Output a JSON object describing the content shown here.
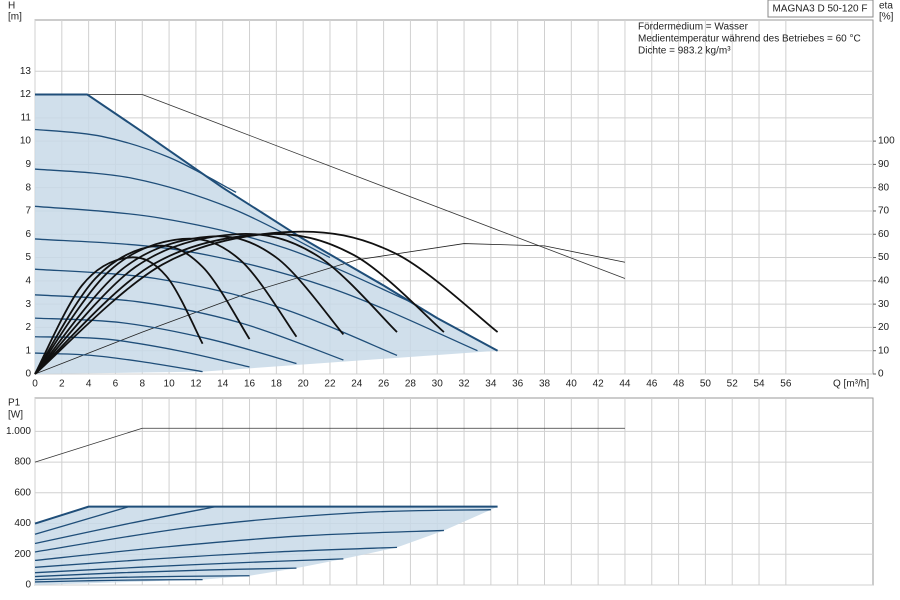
{
  "chart_data": [
    {
      "type": "line",
      "title": "MAGNA3 D 50-120 F",
      "annotations": [
        "Fördermedium = Wasser",
        "Medientemperatur während des Betriebes = 60 °C",
        "Dichte = 983.2 kg/m³"
      ],
      "xlabel": "Q [m³/h]",
      "ylabel": "H",
      "yunit": "[m]",
      "y2label": "eta",
      "y2unit": "[%]",
      "xlim": [
        0,
        62.5
      ],
      "ylim": [
        0,
        15.2
      ],
      "y2lim": [
        0,
        152
      ],
      "xticks": [
        0,
        2,
        4,
        6,
        8,
        10,
        12,
        14,
        16,
        18,
        20,
        22,
        24,
        26,
        28,
        30,
        32,
        34,
        36,
        38,
        40,
        42,
        44,
        46,
        48,
        50,
        52,
        54,
        56
      ],
      "yticks": [
        0,
        1,
        2,
        3,
        4,
        5,
        6,
        7,
        8,
        9,
        10,
        11,
        12,
        13
      ],
      "y2ticks": [
        0,
        10,
        20,
        30,
        40,
        50,
        60,
        70,
        80,
        90,
        100
      ],
      "grid": true,
      "show_xtick_labels": true,
      "series": [
        {
          "style": "area",
          "color": "#c8d9e8",
          "x": [
            0,
            3.9,
            8,
            14,
            20,
            26,
            30,
            34.5,
            12.5,
            0
          ],
          "values": [
            12,
            12,
            10.4,
            8,
            5.8,
            3.8,
            2.4,
            1,
            0.1,
            0
          ]
        },
        {
          "style": "thin",
          "color": "#333333",
          "x": [
            0,
            8,
            44
          ],
          "values": [
            12,
            12,
            4.1
          ]
        },
        {
          "style": "thin",
          "color": "#222222",
          "axis": "y2",
          "x": [
            0,
            8,
            16,
            24,
            32,
            38,
            44
          ],
          "values": [
            0,
            18,
            35,
            49,
            56,
            55,
            48
          ]
        },
        {
          "style": "curve",
          "color": "#1f4e79",
          "x": [
            0,
            5,
            10,
            15
          ],
          "values": [
            10.5,
            10.2,
            9.3,
            7.8
          ]
        },
        {
          "style": "curve",
          "color": "#1f4e79",
          "x": [
            0,
            7.3,
            14.7,
            22
          ],
          "values": [
            8.8,
            8.4,
            7.1,
            5.0
          ]
        },
        {
          "style": "curve",
          "color": "#1f4e79",
          "x": [
            0,
            9.3,
            18.7,
            28
          ],
          "values": [
            7.2,
            6.7,
            5.4,
            3.1
          ]
        },
        {
          "style": "curve",
          "color": "#1f4e79",
          "x": [
            0,
            11,
            22,
            33
          ],
          "values": [
            5.8,
            5.3,
            3.7,
            1.0
          ]
        },
        {
          "style": "curve",
          "color": "#1f4e79",
          "x": [
            0,
            9,
            18,
            27
          ],
          "values": [
            4.5,
            4.1,
            2.9,
            0.8
          ]
        },
        {
          "style": "curve",
          "color": "#1f4e79",
          "x": [
            0,
            7.7,
            15.3,
            23
          ],
          "values": [
            3.4,
            3.1,
            2.2,
            0.6
          ]
        },
        {
          "style": "curve",
          "color": "#1f4e79",
          "x": [
            0,
            6.5,
            13,
            19.5
          ],
          "values": [
            2.4,
            2.2,
            1.5,
            0.45
          ]
        },
        {
          "style": "curve",
          "color": "#1f4e79",
          "x": [
            0,
            5.3,
            10.7,
            16
          ],
          "values": [
            1.6,
            1.5,
            1.0,
            0.3
          ]
        },
        {
          "style": "curve",
          "color": "#1f4e79",
          "x": [
            0,
            4.2,
            8.3,
            12.5
          ],
          "values": [
            0.9,
            0.8,
            0.5,
            0.1
          ]
        },
        {
          "style": "edge",
          "color": "#1f4e79",
          "x": [
            0,
            3.9,
            8,
            14,
            20,
            26,
            30,
            34.5
          ],
          "values": [
            12,
            12,
            10.4,
            8,
            5.8,
            3.8,
            2.4,
            1
          ]
        },
        {
          "style": "thick",
          "color": "#111111",
          "axis": "y2",
          "x": [
            0,
            3.5,
            7,
            9.8,
            12.5
          ],
          "values": [
            0,
            38,
            50,
            42,
            13
          ]
        },
        {
          "style": "thick",
          "color": "#111111",
          "axis": "y2",
          "x": [
            0,
            4.5,
            9,
            12.5,
            16
          ],
          "values": [
            0,
            41,
            55,
            46,
            15
          ]
        },
        {
          "style": "thick",
          "color": "#111111",
          "axis": "y2",
          "x": [
            0,
            5.5,
            11,
            15.3,
            19.5
          ],
          "values": [
            0,
            44,
            58,
            49,
            16
          ]
        },
        {
          "style": "thick",
          "color": "#111111",
          "axis": "y2",
          "x": [
            0,
            6.5,
            13,
            18,
            23
          ],
          "values": [
            0,
            45,
            59,
            50,
            17
          ]
        },
        {
          "style": "thick",
          "color": "#111111",
          "axis": "y2",
          "x": [
            0,
            7.5,
            15,
            21,
            27
          ],
          "values": [
            0,
            46,
            60,
            51,
            18
          ]
        },
        {
          "style": "thick",
          "color": "#111111",
          "axis": "y2",
          "x": [
            0,
            8.5,
            17,
            23.8,
            30.5
          ],
          "values": [
            0,
            46,
            60,
            51,
            18
          ]
        },
        {
          "style": "thick",
          "color": "#111111",
          "axis": "y2",
          "x": [
            0,
            9.5,
            19,
            26.8,
            34.5
          ],
          "values": [
            0,
            47,
            61,
            52,
            18
          ]
        }
      ]
    },
    {
      "type": "line",
      "ylabel": "P1",
      "yunit": "[W]",
      "xlim": [
        0,
        62.5
      ],
      "ylim": [
        0,
        1217
      ],
      "xticks": [
        0,
        2,
        4,
        6,
        8,
        10,
        12,
        14,
        16,
        18,
        20,
        22,
        24,
        26,
        28,
        30,
        32,
        34,
        36,
        38,
        40,
        42,
        44,
        46,
        48,
        50,
        52,
        54,
        56
      ],
      "yticks": [
        0,
        200,
        400,
        600,
        800,
        {
          "value": 1000,
          "label": "1.000"
        }
      ],
      "grid": true,
      "show_xtick_labels": false,
      "series": [
        {
          "style": "area",
          "color": "#c8d9e8",
          "x": [
            0,
            4,
            34.5,
            34,
            30.5,
            27,
            23,
            19.5,
            16,
            12.5,
            0
          ],
          "values": [
            400,
            510,
            510,
            490,
            355,
            245,
            170,
            110,
            60,
            35,
            0
          ]
        },
        {
          "style": "thin",
          "color": "#333333",
          "x": [
            0,
            8,
            44
          ],
          "values": [
            800,
            1020,
            1020
          ]
        },
        {
          "style": "curve",
          "color": "#1f4e79",
          "x": [
            0,
            3.5,
            7
          ],
          "values": [
            330,
            420,
            510
          ]
        },
        {
          "style": "curve",
          "color": "#1f4e79",
          "x": [
            0,
            7,
            13.5
          ],
          "values": [
            270,
            400,
            510
          ]
        },
        {
          "style": "curve",
          "color": "#1f4e79",
          "x": [
            0,
            12,
            24,
            34
          ],
          "values": [
            215,
            380,
            470,
            490
          ]
        },
        {
          "style": "curve",
          "color": "#1f4e79",
          "x": [
            0,
            10,
            20,
            30.5
          ],
          "values": [
            160,
            250,
            320,
            355
          ]
        },
        {
          "style": "curve",
          "color": "#1f4e79",
          "x": [
            0,
            9,
            18,
            27
          ],
          "values": [
            115,
            170,
            215,
            245
          ]
        },
        {
          "style": "curve",
          "color": "#1f4e79",
          "x": [
            0,
            7.7,
            15.3,
            23
          ],
          "values": [
            80,
            115,
            145,
            170
          ]
        },
        {
          "style": "curve",
          "color": "#1f4e79",
          "x": [
            0,
            6.5,
            13,
            19.5
          ],
          "values": [
            55,
            80,
            98,
            110
          ]
        },
        {
          "style": "curve",
          "color": "#1f4e79",
          "x": [
            0,
            5.3,
            10.7,
            16
          ],
          "values": [
            35,
            48,
            56,
            60
          ]
        },
        {
          "style": "curve",
          "color": "#1f4e79",
          "x": [
            0,
            4.2,
            8.3,
            12.5
          ],
          "values": [
            20,
            28,
            33,
            35
          ]
        },
        {
          "style": "edge",
          "color": "#1f4e79",
          "x": [
            0,
            4,
            34.5
          ],
          "values": [
            400,
            510,
            510
          ]
        }
      ]
    }
  ]
}
